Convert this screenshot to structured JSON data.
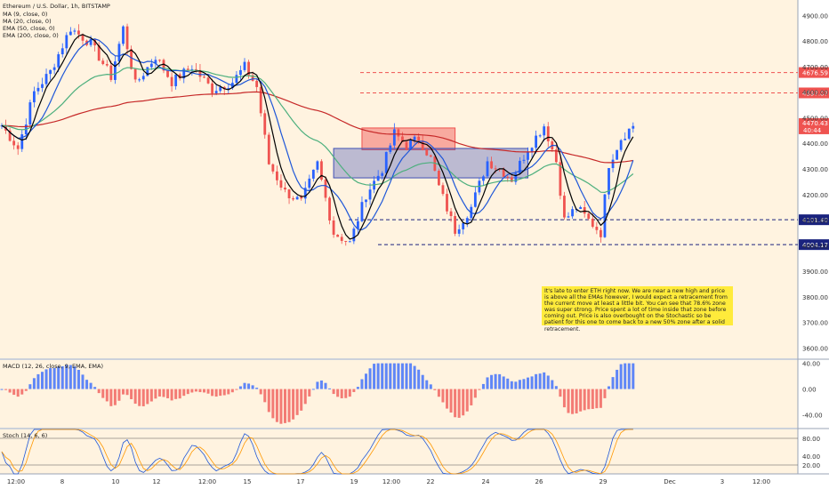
{
  "header": {
    "symbol": "Ethereum / U.S. Dollar, 1h, BITSTAMP",
    "indicators": [
      "MA (9, close, 0)",
      "MA (20, close, 0)",
      "EMA (50, close, 0)",
      "EMA (200, close, 0)"
    ]
  },
  "note": {
    "text": "It's late to enter ETH right now. We are near a new high and price is above all the EMAs however, I would expect a retracement from the current move at least a little bit. You can see that 78.6% zone was super strong. Price spent a lot of time inside that zone before coming out. Price is also overbought on the Stochastic so be patient for this one to come back to a new 50% zone after a solid retracement."
  },
  "macd": {
    "label": "MACD (12, 26, close, 9, EMA, EMA)"
  },
  "stoch": {
    "label": "Stoch (14, 6, 6)"
  },
  "colors": {
    "background": "#fff3e0",
    "bull": "#2962ff",
    "bear": "#ef5350",
    "ma9": "#000000",
    "ma20": "#1e56d8",
    "ema50": "#4caf7d",
    "ema200": "#c62828",
    "annotation": "#ffeb3b"
  },
  "chart_data": [
    {
      "type": "candlestick",
      "title": "Ethereum / U.S. Dollar, 1h, BITSTAMP",
      "ylim": [
        3560,
        4960
      ],
      "y_ticks": [
        3600,
        3700,
        3800,
        3900,
        4000,
        4100,
        4200,
        4300,
        4400,
        4500,
        4600,
        4700,
        4800,
        4900
      ],
      "x_ticks": [
        "12:00",
        "8",
        "10",
        "12",
        "12:00",
        "15",
        "17",
        "19",
        "12:00",
        "22",
        "24",
        "26",
        "29",
        "Dec",
        "3",
        "12:00"
      ],
      "price_points": [
        {
          "i": 0,
          "p": 4470
        },
        {
          "i": 4,
          "p": 4380
        },
        {
          "i": 8,
          "p": 4600
        },
        {
          "i": 12,
          "p": 4680
        },
        {
          "i": 17,
          "p": 4850
        },
        {
          "i": 22,
          "p": 4790
        },
        {
          "i": 27,
          "p": 4660
        },
        {
          "i": 30,
          "p": 4850
        },
        {
          "i": 33,
          "p": 4630
        },
        {
          "i": 38,
          "p": 4740
        },
        {
          "i": 42,
          "p": 4640
        },
        {
          "i": 47,
          "p": 4700
        },
        {
          "i": 52,
          "p": 4610
        },
        {
          "i": 57,
          "p": 4640
        },
        {
          "i": 60,
          "p": 4700
        },
        {
          "i": 63,
          "p": 4620
        },
        {
          "i": 66,
          "p": 4320
        },
        {
          "i": 70,
          "p": 4210
        },
        {
          "i": 74,
          "p": 4170
        },
        {
          "i": 78,
          "p": 4320
        },
        {
          "i": 82,
          "p": 4050
        },
        {
          "i": 86,
          "p": 4010
        },
        {
          "i": 90,
          "p": 4200
        },
        {
          "i": 94,
          "p": 4300
        },
        {
          "i": 97,
          "p": 4440
        },
        {
          "i": 100,
          "p": 4390
        },
        {
          "i": 103,
          "p": 4420
        },
        {
          "i": 106,
          "p": 4340
        },
        {
          "i": 108,
          "p": 4230
        },
        {
          "i": 112,
          "p": 4060
        },
        {
          "i": 116,
          "p": 4150
        },
        {
          "i": 120,
          "p": 4330
        },
        {
          "i": 123,
          "p": 4300
        },
        {
          "i": 126,
          "p": 4260
        },
        {
          "i": 130,
          "p": 4380
        },
        {
          "i": 134,
          "p": 4470
        },
        {
          "i": 137,
          "p": 4330
        },
        {
          "i": 139,
          "p": 4100
        },
        {
          "i": 142,
          "p": 4150
        },
        {
          "i": 145,
          "p": 4100
        },
        {
          "i": 148,
          "p": 4050
        },
        {
          "i": 150,
          "p": 4320
        },
        {
          "i": 153,
          "p": 4420
        },
        {
          "i": 156,
          "p": 4470
        }
      ],
      "horizontal_levels": [
        {
          "price": 4676.59,
          "label": "4676.59",
          "color": "#ef5350",
          "style": "dashed"
        },
        {
          "price": 4597.07,
          "label": "4597.07",
          "color": "#ef5350",
          "style": "dashed"
        },
        {
          "price": 4101.4,
          "label": "4101.40",
          "color": "#1a237e",
          "style": "dashed"
        },
        {
          "price": 4004.17,
          "label": "4004.17",
          "color": "#1a237e",
          "style": "dashed"
        }
      ],
      "zones": [
        {
          "name": "upper-zone",
          "color": "#ef5350",
          "price_top": 4460,
          "price_bottom": 4375
        },
        {
          "name": "lower-zone",
          "color": "#3f51b5",
          "price_top": 4380,
          "price_bottom": 4265
        }
      ],
      "last_price": {
        "value": "4470.43",
        "countdown": "40:44"
      }
    },
    {
      "type": "bar",
      "title": "MACD (12, 26, close, 9, EMA, EMA)",
      "ylim": [
        -60,
        45
      ],
      "y_ticks": [
        "40.00",
        "0.00",
        "-40.00"
      ]
    },
    {
      "type": "line",
      "title": "Stoch (14, 6, 6)",
      "ylim": [
        0,
        100
      ],
      "y_ticks": [
        "80.00",
        "40.00",
        "20.00"
      ]
    }
  ]
}
